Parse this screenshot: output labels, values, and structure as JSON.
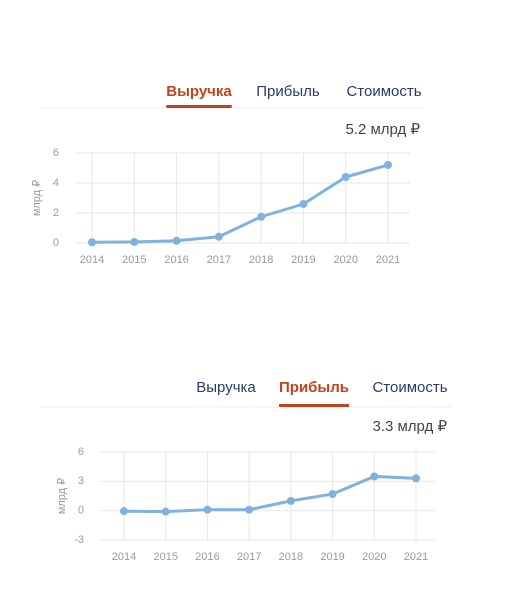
{
  "chart_data": [
    {
      "type": "line",
      "tabs": [
        "Выручка",
        "Прибыль",
        "Стоимость"
      ],
      "active_tab": 0,
      "annotation": "5.2 млрд ₽",
      "ylabel": "млрд ₽",
      "categories": [
        "2014",
        "2015",
        "2016",
        "2017",
        "2018",
        "2019",
        "2020",
        "2021"
      ],
      "values": [
        0.05,
        0.07,
        0.15,
        0.42,
        1.75,
        2.6,
        4.4,
        5.2
      ],
      "color": "#7fb2e0",
      "ylim": [
        0,
        6
      ],
      "yticks": [
        0,
        2,
        4,
        6
      ],
      "grid": true
    },
    {
      "type": "line",
      "tabs": [
        "Выручка",
        "Прибыль",
        "Стоимость"
      ],
      "active_tab": 1,
      "annotation": "3.3 млрд ₽",
      "ylabel": "млрд ₽",
      "categories": [
        "2014",
        "2015",
        "2016",
        "2017",
        "2018",
        "2019",
        "2020",
        "2021"
      ],
      "values": [
        -0.05,
        -0.1,
        0.1,
        0.1,
        1.0,
        1.7,
        3.5,
        3.3
      ],
      "color": "#7fb2e0",
      "ylim": [
        -3,
        6
      ],
      "yticks": [
        -3,
        0,
        3,
        6
      ],
      "grid": true
    }
  ]
}
